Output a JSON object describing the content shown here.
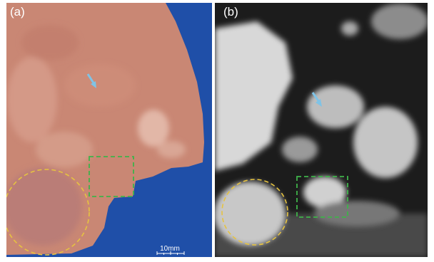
{
  "panels": [
    {
      "label": "(a)"
    },
    {
      "label": "(b)"
    }
  ],
  "scale_bar": {
    "label": "10mm"
  }
}
